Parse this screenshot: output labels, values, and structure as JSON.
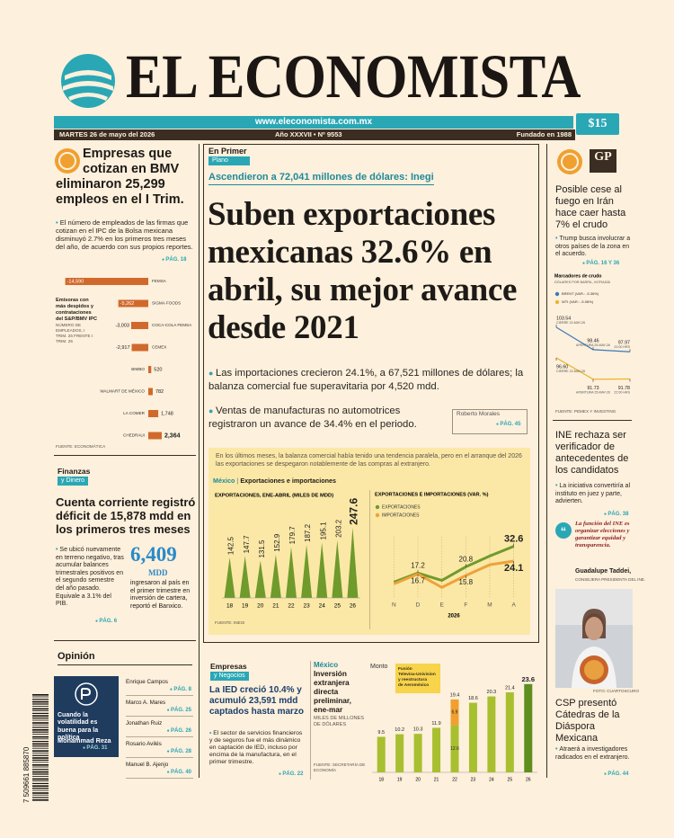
{
  "masthead": {
    "title": "EL ECONOMISTA",
    "url": "www.eleconomista.com.mx",
    "price": "$15",
    "date": "MARTES 26 de mayo del 2026",
    "issue": "Año XXXVII • Nº 9553",
    "founded": "Fundado en 1988"
  },
  "empleos": {
    "headline": "Empresas que cotizan en BMV eliminaron 25,299 empleos en el I Trim.",
    "bullet": "El número de empleados de las firmas que cotizan en el IPC de la Bolsa mexicana disminuyó 2.7% en los primeros tres meses del año, de acuerdo con sus propios reportes.",
    "page": "PÁG. 18",
    "chart": {
      "type": "bar",
      "orientation": "horizontal",
      "title": "Emisoras con más despidos y contrataciones del S&P/BMV IPC",
      "subtitle": "NÚMERO DE EMPLEADOS, I TRIM. 26 FRENTE I TRIM. 25",
      "categories": [
        "FEMSA",
        "SIGMA FOODS",
        "COCA-COLA FEMSA",
        "CEMEX",
        "BIMBO",
        "WALMART DE MÉXICO",
        "LA COMER",
        "CHEDRAUI"
      ],
      "values": [
        -14590,
        -5262,
        -3003,
        -2917,
        520,
        782,
        1748,
        2364
      ],
      "value_labels": [
        "-14,590",
        "-5,262",
        "-3,003",
        "-2,917",
        "520",
        "782",
        "1,748",
        "2,364"
      ],
      "xlim": [
        -15000,
        3000
      ],
      "color": "#d0692c",
      "source": "FUENTE: ECONOMÁTICA"
    }
  },
  "cuenta": {
    "section": "Finanzas",
    "section_sub": "y Dinero",
    "headline": "Cuenta corriente registró déficit de 15,878 mdd en los primeros tres meses",
    "bullet": "Se ubicó nuevamente en terreno negativo, tras acumular balances trimestrales positivos en el segundo semestre del año pasado. Equivale a 3.1% del PIB.",
    "page": "PÁG. 6",
    "figure": "6,409",
    "unit": "MDD",
    "figure_text": "ingresaron al país en el primer trimestre en inversión de cartera, reportó el Banxico."
  },
  "opinion": {
    "title": "Opinión",
    "featured": {
      "headline": "Cuando la volatilidad es buena para la política",
      "author": "Mohammad Reza",
      "page": "PÁG. 31"
    },
    "columnists": [
      {
        "name": "Enrique Campos",
        "page": "PÁG. 8"
      },
      {
        "name": "Marco A. Mares",
        "page": "PÁG. 25"
      },
      {
        "name": "Jonathan Ruiz",
        "page": "PÁG. 26"
      },
      {
        "name": "Rosario Avilés",
        "page": "PÁG. 28"
      },
      {
        "name": "Manuel B. Ajenjo",
        "page": "PÁG. 40"
      }
    ]
  },
  "barcode": "7 509661 885870",
  "lead": {
    "section": "En Primer",
    "section_sub": "Plano",
    "kicker": "Ascendieron a 72,041 millones de dólares: Inegi",
    "headline": "Suben exportaciones mexicanas 32.6% en abril, su mejor avance desde 2021",
    "bullets": [
      "Las importaciones crecieron 24.1%, a 67,521 millones de dólares; la balanza comercial fue superavitaria por 4,520 mdd.",
      "Ventas de manufacturas no automotrices registraron un avance de 34.4% en el periodo."
    ],
    "byline": "Roberto Morales",
    "page": "PÁG. 45",
    "intro": "En los últimos meses, la balanza comercial había tenido una tendencia paralela, pero en el arranque del 2026 las exportaciones se despegaron notablemente de las compras al extranjero.",
    "chart_label": "México",
    "chart_title": "Exportaciones e importaciones",
    "exports_chart": {
      "type": "bar",
      "title": "EXPORTACIONES, ENE-ABRIL (MILES DE MDD)",
      "categories": [
        "18",
        "19",
        "20",
        "21",
        "22",
        "23",
        "24",
        "25",
        "26"
      ],
      "values": [
        142.5,
        147.7,
        131.5,
        152.9,
        179.7,
        187.2,
        195.1,
        203.2,
        247.6
      ],
      "ylim": [
        0,
        260
      ],
      "color": "#6f9a2c",
      "source": "FUENTE: INEGI"
    },
    "var_chart": {
      "type": "line",
      "title": "EXPORTACIONES E IMPORTACIONES (VAR. %)",
      "categories": [
        "N",
        "D",
        "E",
        "F",
        "M",
        "A"
      ],
      "xlabel": "2026",
      "ylim": [
        5,
        36
      ],
      "series": [
        {
          "name": "EXPORTACIONES",
          "color": "#6f9a2c",
          "values": [
            12,
            17.2,
            13,
            20.8,
            27,
            32.6
          ],
          "value_labels": [
            null,
            "17.2",
            null,
            "20.8",
            null,
            "32.6"
          ]
        },
        {
          "name": "IMPORTACIONES",
          "color": "#eea23a",
          "values": [
            11,
            16.7,
            9,
            15.8,
            22,
            24.1
          ],
          "value_labels": [
            null,
            "16.7",
            null,
            "15.8",
            null,
            "24.1"
          ]
        }
      ]
    }
  },
  "iran": {
    "brand": "GP",
    "headline": "Posible cese al fuego en Irán hace caer hasta 7% el crudo",
    "bullet": "Trump busca involucrar a otros países de la zona en el acuerdo.",
    "page": "PÁG. 16 Y 36",
    "chart": {
      "type": "line",
      "title": "Marcadores de crudo",
      "subtitle": "DÓLARES POR BARRIL, INTRADÍA",
      "ylim": [
        88,
        106
      ],
      "series": [
        {
          "name": "BRENT (VAR.: -5.36%)",
          "color": "#3a7ab8",
          "values": [
            103.54,
            98.46,
            97.97
          ],
          "point_labels": [
            "CIERRE 22-MAY-26",
            "APERTURA 25-MAY-26",
            "22:00 HRS"
          ]
        },
        {
          "name": "WTI (VAR.: -5.08%)",
          "color": "#e8b52e",
          "values": [
            96.6,
            91.73,
            91.78
          ],
          "value_labels": [
            "96.60",
            "91.73",
            "91.78"
          ],
          "point_labels": [
            "CIERRE 22-MAY-26",
            "APERTURA 25-MAY-26",
            "22:00 HRS"
          ]
        }
      ],
      "source": "FUENTE: PEMEX Y INVESTING"
    }
  },
  "ine": {
    "headline": "INE rechaza ser verificador de antecedentes de los candidatos",
    "bullet": "La iniciativa convertiría al instituto en juez y parte, advierten.",
    "page": "PÁG. 38",
    "quote": "La función del INE es organizar elecciones y garantizar equidad y transparencia.",
    "quote_author": "Guadalupe Taddei,",
    "quote_role": "CONSEJERA PRESIDENTA DEL INE."
  },
  "csp": {
    "photo_credit": "FOTO: CUARTOSCURO",
    "headline": "CSP presentó Cátedras de la Diáspora Mexicana",
    "bullet": "Atraerá a investigadores radicados en el extranjero.",
    "page": "PÁG. 44"
  },
  "ied": {
    "section": "Empresas",
    "section_sub": "y Negocios",
    "headline": "La IED creció 10.4% y acumuló 23,591 mdd captados hasta marzo",
    "bullet": "El sector de servicios financieros y de seguros fue el más dinámico en captación de IED, incluso por encima de la manufactura, en el primer trimestre.",
    "page": "PÁG. 22",
    "chart": {
      "type": "bar",
      "stacked": true,
      "label": "México",
      "title": "Inversión extranjera directa preliminar, ene-mar",
      "subtitle": "MILES DE MILLONES DE DÓLARES",
      "series_label": "Monto",
      "annotation": "Fusión Televisa-Univision y reestructura de Aeroméxico",
      "categories": [
        "18",
        "19",
        "20",
        "21",
        "22",
        "23",
        "24",
        "25",
        "26"
      ],
      "series": [
        {
          "color": "#a8bf2f",
          "values": [
            9.5,
            10.2,
            10.3,
            11.9,
            12.6,
            18.6,
            20.3,
            21.4,
            23.6
          ]
        },
        {
          "color": "#f0a030",
          "values": [
            null,
            null,
            null,
            null,
            6.9,
            null,
            null,
            null,
            null
          ]
        }
      ],
      "total_labels": [
        null,
        null,
        null,
        null,
        "19.4",
        null,
        null,
        null,
        null
      ],
      "last_color": "#5e8e1e",
      "ylim": [
        0,
        25
      ],
      "source": "FUENTE: SECRETARÍA DE ECONOMÍA"
    }
  }
}
